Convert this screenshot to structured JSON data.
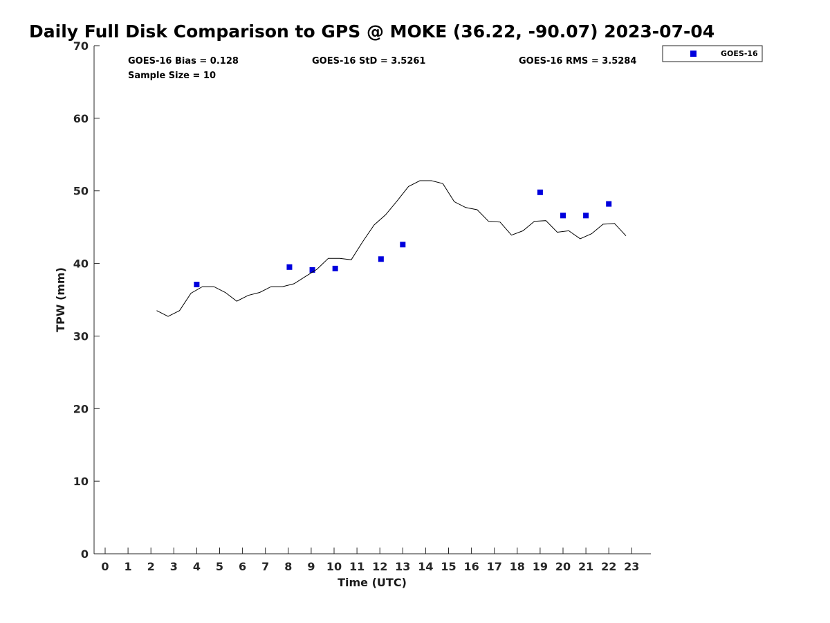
{
  "chart_data": {
    "type": "scatter",
    "title": "Daily Full Disk Comparison to GPS @ MOKE (36.22, -90.07) 2023-07-04",
    "xlabel": "Time (UTC)",
    "ylabel": "TPW (mm)",
    "xlim": [
      -0.5,
      23.8
    ],
    "ylim": [
      0,
      70
    ],
    "x_ticks": [
      0,
      1,
      2,
      3,
      4,
      5,
      6,
      7,
      8,
      9,
      10,
      11,
      12,
      13,
      14,
      15,
      16,
      17,
      18,
      19,
      20,
      21,
      22,
      23
    ],
    "y_ticks": [
      0,
      10,
      20,
      30,
      40,
      50,
      60,
      70
    ],
    "grid": false,
    "legend_position": "outside top-right",
    "stats": {
      "bias": "GOES-16 Bias = 0.128",
      "sample_size": "Sample Size = 10",
      "std": "GOES-16 StD = 3.5261",
      "rms": "GOES-16 RMS = 3.5284"
    },
    "series": [
      {
        "type": "scatter",
        "name": "GOES-16",
        "color": "#0000dd",
        "marker": "square",
        "points": [
          {
            "x": 4.0,
            "y": 37.1
          },
          {
            "x": 8.05,
            "y": 39.5
          },
          {
            "x": 9.05,
            "y": 39.1
          },
          {
            "x": 10.05,
            "y": 39.3
          },
          {
            "x": 12.05,
            "y": 40.6
          },
          {
            "x": 13.0,
            "y": 42.6
          },
          {
            "x": 19.0,
            "y": 49.8
          },
          {
            "x": 20.0,
            "y": 46.6
          },
          {
            "x": 21.0,
            "y": 46.6
          },
          {
            "x": 22.0,
            "y": 48.2
          }
        ]
      },
      {
        "type": "line",
        "color": "#000000",
        "points": [
          {
            "x": 2.25,
            "y": 33.5
          },
          {
            "x": 2.75,
            "y": 32.7
          },
          {
            "x": 3.25,
            "y": 33.5
          },
          {
            "x": 3.75,
            "y": 35.9
          },
          {
            "x": 4.25,
            "y": 36.8
          },
          {
            "x": 4.75,
            "y": 36.8
          },
          {
            "x": 5.25,
            "y": 36.0
          },
          {
            "x": 5.75,
            "y": 34.8
          },
          {
            "x": 6.25,
            "y": 35.6
          },
          {
            "x": 6.75,
            "y": 36.0
          },
          {
            "x": 7.25,
            "y": 36.8
          },
          {
            "x": 7.75,
            "y": 36.8
          },
          {
            "x": 8.25,
            "y": 37.2
          },
          {
            "x": 8.75,
            "y": 38.2
          },
          {
            "x": 9.25,
            "y": 39.2
          },
          {
            "x": 9.75,
            "y": 40.7
          },
          {
            "x": 10.25,
            "y": 40.7
          },
          {
            "x": 10.75,
            "y": 40.5
          },
          {
            "x": 11.25,
            "y": 43.0
          },
          {
            "x": 11.75,
            "y": 45.3
          },
          {
            "x": 12.25,
            "y": 46.7
          },
          {
            "x": 12.75,
            "y": 48.6
          },
          {
            "x": 13.25,
            "y": 50.6
          },
          {
            "x": 13.75,
            "y": 51.4
          },
          {
            "x": 14.25,
            "y": 51.4
          },
          {
            "x": 14.75,
            "y": 51.0
          },
          {
            "x": 15.25,
            "y": 48.5
          },
          {
            "x": 15.75,
            "y": 47.7
          },
          {
            "x": 16.25,
            "y": 47.4
          },
          {
            "x": 16.75,
            "y": 45.8
          },
          {
            "x": 17.25,
            "y": 45.7
          },
          {
            "x": 17.75,
            "y": 43.9
          },
          {
            "x": 18.25,
            "y": 44.5
          },
          {
            "x": 18.75,
            "y": 45.8
          },
          {
            "x": 19.25,
            "y": 45.9
          },
          {
            "x": 19.75,
            "y": 44.3
          },
          {
            "x": 20.25,
            "y": 44.5
          },
          {
            "x": 20.75,
            "y": 43.4
          },
          {
            "x": 21.25,
            "y": 44.1
          },
          {
            "x": 21.75,
            "y": 45.4
          },
          {
            "x": 22.25,
            "y": 45.5
          },
          {
            "x": 22.75,
            "y": 43.8
          }
        ]
      }
    ]
  }
}
